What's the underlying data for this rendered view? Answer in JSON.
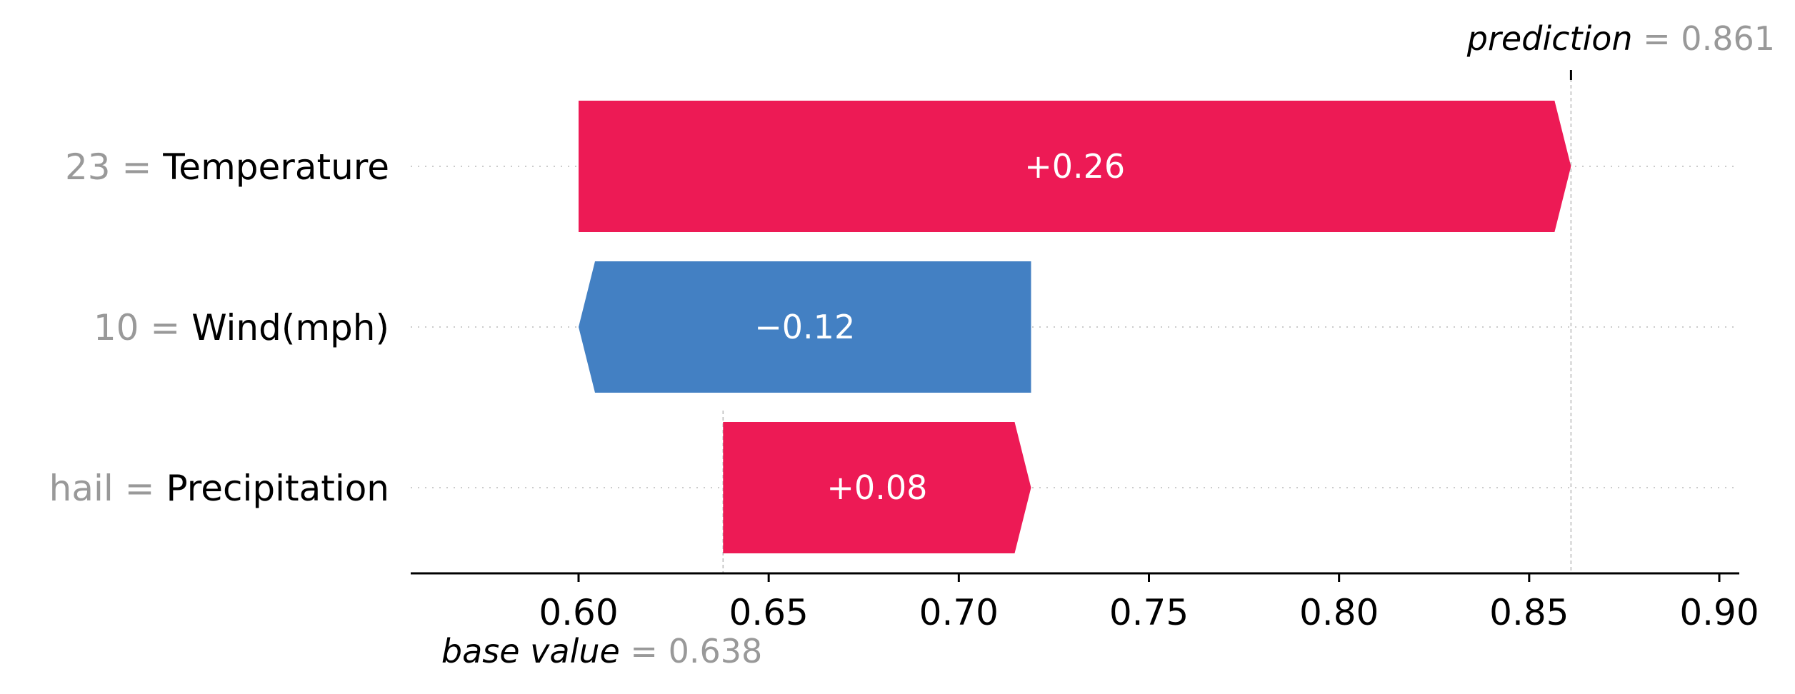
{
  "chart_data": {
    "type": "bar",
    "subtype": "shap-waterfall",
    "base_value": 0.638,
    "base_value_text": "0.638",
    "base_value_label": "base value",
    "prediction": 0.861,
    "prediction_text": "0.861",
    "prediction_label": "prediction",
    "equals": "=",
    "features": [
      {
        "name": "Temperature",
        "value": "23",
        "contribution": 0.26,
        "label": "+0.26",
        "start": 0.6,
        "end": 0.861,
        "color": "#ed1a55"
      },
      {
        "name": "Wind(mph)",
        "value": "10",
        "contribution": -0.12,
        "label": "−0.12",
        "start": 0.719,
        "end": 0.6,
        "color": "#4380c3"
      },
      {
        "name": "Precipitation",
        "value": "hail",
        "contribution": 0.08,
        "label": "+0.08",
        "start": 0.638,
        "end": 0.719,
        "color": "#ed1a55"
      }
    ],
    "xlim": [
      0.555,
      0.905
    ],
    "xticks": [
      0.6,
      0.65,
      0.7,
      0.75,
      0.8,
      0.85,
      0.9
    ],
    "xtick_labels": [
      "0.60",
      "0.65",
      "0.70",
      "0.75",
      "0.80",
      "0.85",
      "0.90"
    ],
    "grid": false,
    "colors": {
      "positive": "#ed1a55",
      "negative": "#4380c3",
      "gray": "#999999"
    }
  }
}
